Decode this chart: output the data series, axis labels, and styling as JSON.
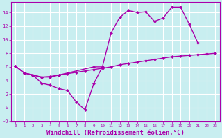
{
  "bg_color": "#c8eef0",
  "grid_color": "#aadddd",
  "line_color": "#aa00aa",
  "marker": "D",
  "markersize": 2.5,
  "linewidth": 1.0,
  "xlabel": "Windchill (Refroidissement éolien,°C)",
  "xlabel_fontsize": 6.5,
  "xlim": [
    -0.5,
    23.5
  ],
  "ylim": [
    -1.2,
    15.5
  ],
  "line1_x": [
    0,
    1,
    2,
    3,
    4,
    5,
    6,
    7,
    8,
    9,
    10
  ],
  "line1_y": [
    6.1,
    5.1,
    4.8,
    3.6,
    3.3,
    2.8,
    2.5,
    0.8,
    -0.3,
    3.5,
    6.0
  ],
  "line2_x": [
    0,
    1,
    2,
    3,
    4,
    5,
    9,
    10,
    11,
    12,
    13,
    14,
    15,
    16,
    17,
    18,
    19,
    20,
    21
  ],
  "line2_y": [
    6.1,
    5.1,
    4.8,
    4.5,
    4.5,
    4.8,
    6.0,
    6.0,
    11.0,
    13.3,
    14.3,
    14.0,
    14.1,
    12.7,
    13.2,
    14.8,
    14.8,
    12.3,
    9.5
  ],
  "line3_x": [
    0,
    1,
    2,
    3,
    4,
    5,
    6,
    7,
    8,
    9,
    10,
    11,
    12,
    13,
    14,
    15,
    16,
    17,
    18,
    19,
    20,
    21,
    22,
    23
  ],
  "line3_y": [
    6.1,
    5.1,
    4.8,
    4.5,
    4.6,
    4.8,
    5.0,
    5.2,
    5.4,
    5.6,
    5.8,
    6.0,
    6.3,
    6.5,
    6.7,
    6.9,
    7.1,
    7.3,
    7.5,
    7.6,
    7.7,
    7.8,
    7.9,
    8.0
  ]
}
